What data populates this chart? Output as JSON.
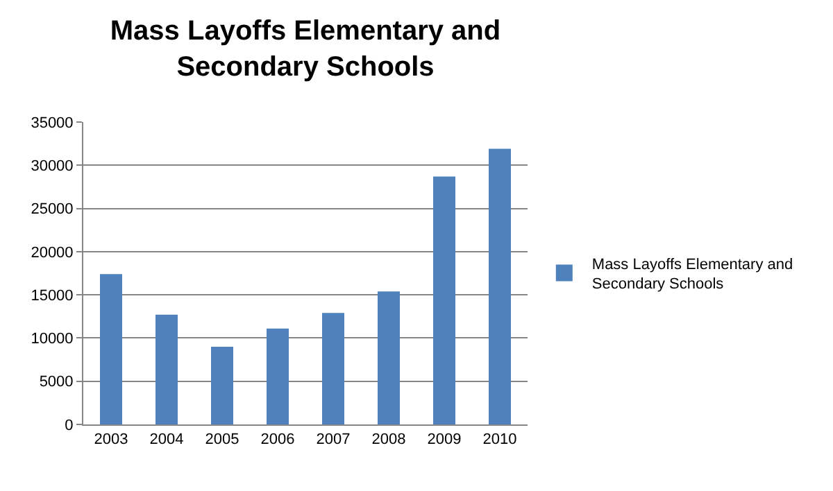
{
  "chart_data": {
    "type": "bar",
    "title": "Mass Layoffs Elementary and Secondary Schools",
    "categories": [
      "2003",
      "2004",
      "2005",
      "2006",
      "2007",
      "2008",
      "2009",
      "2010"
    ],
    "series": [
      {
        "name": "Mass Layoffs Elementary and Secondary Schools",
        "color": "#4f81bd",
        "values": [
          17400,
          12700,
          9000,
          11100,
          12900,
          15400,
          28700,
          31900
        ]
      }
    ],
    "ylim": [
      0,
      35000
    ],
    "yticks": [
      0,
      5000,
      10000,
      15000,
      20000,
      25000,
      30000,
      35000
    ],
    "grid": "y",
    "legend": "right"
  }
}
